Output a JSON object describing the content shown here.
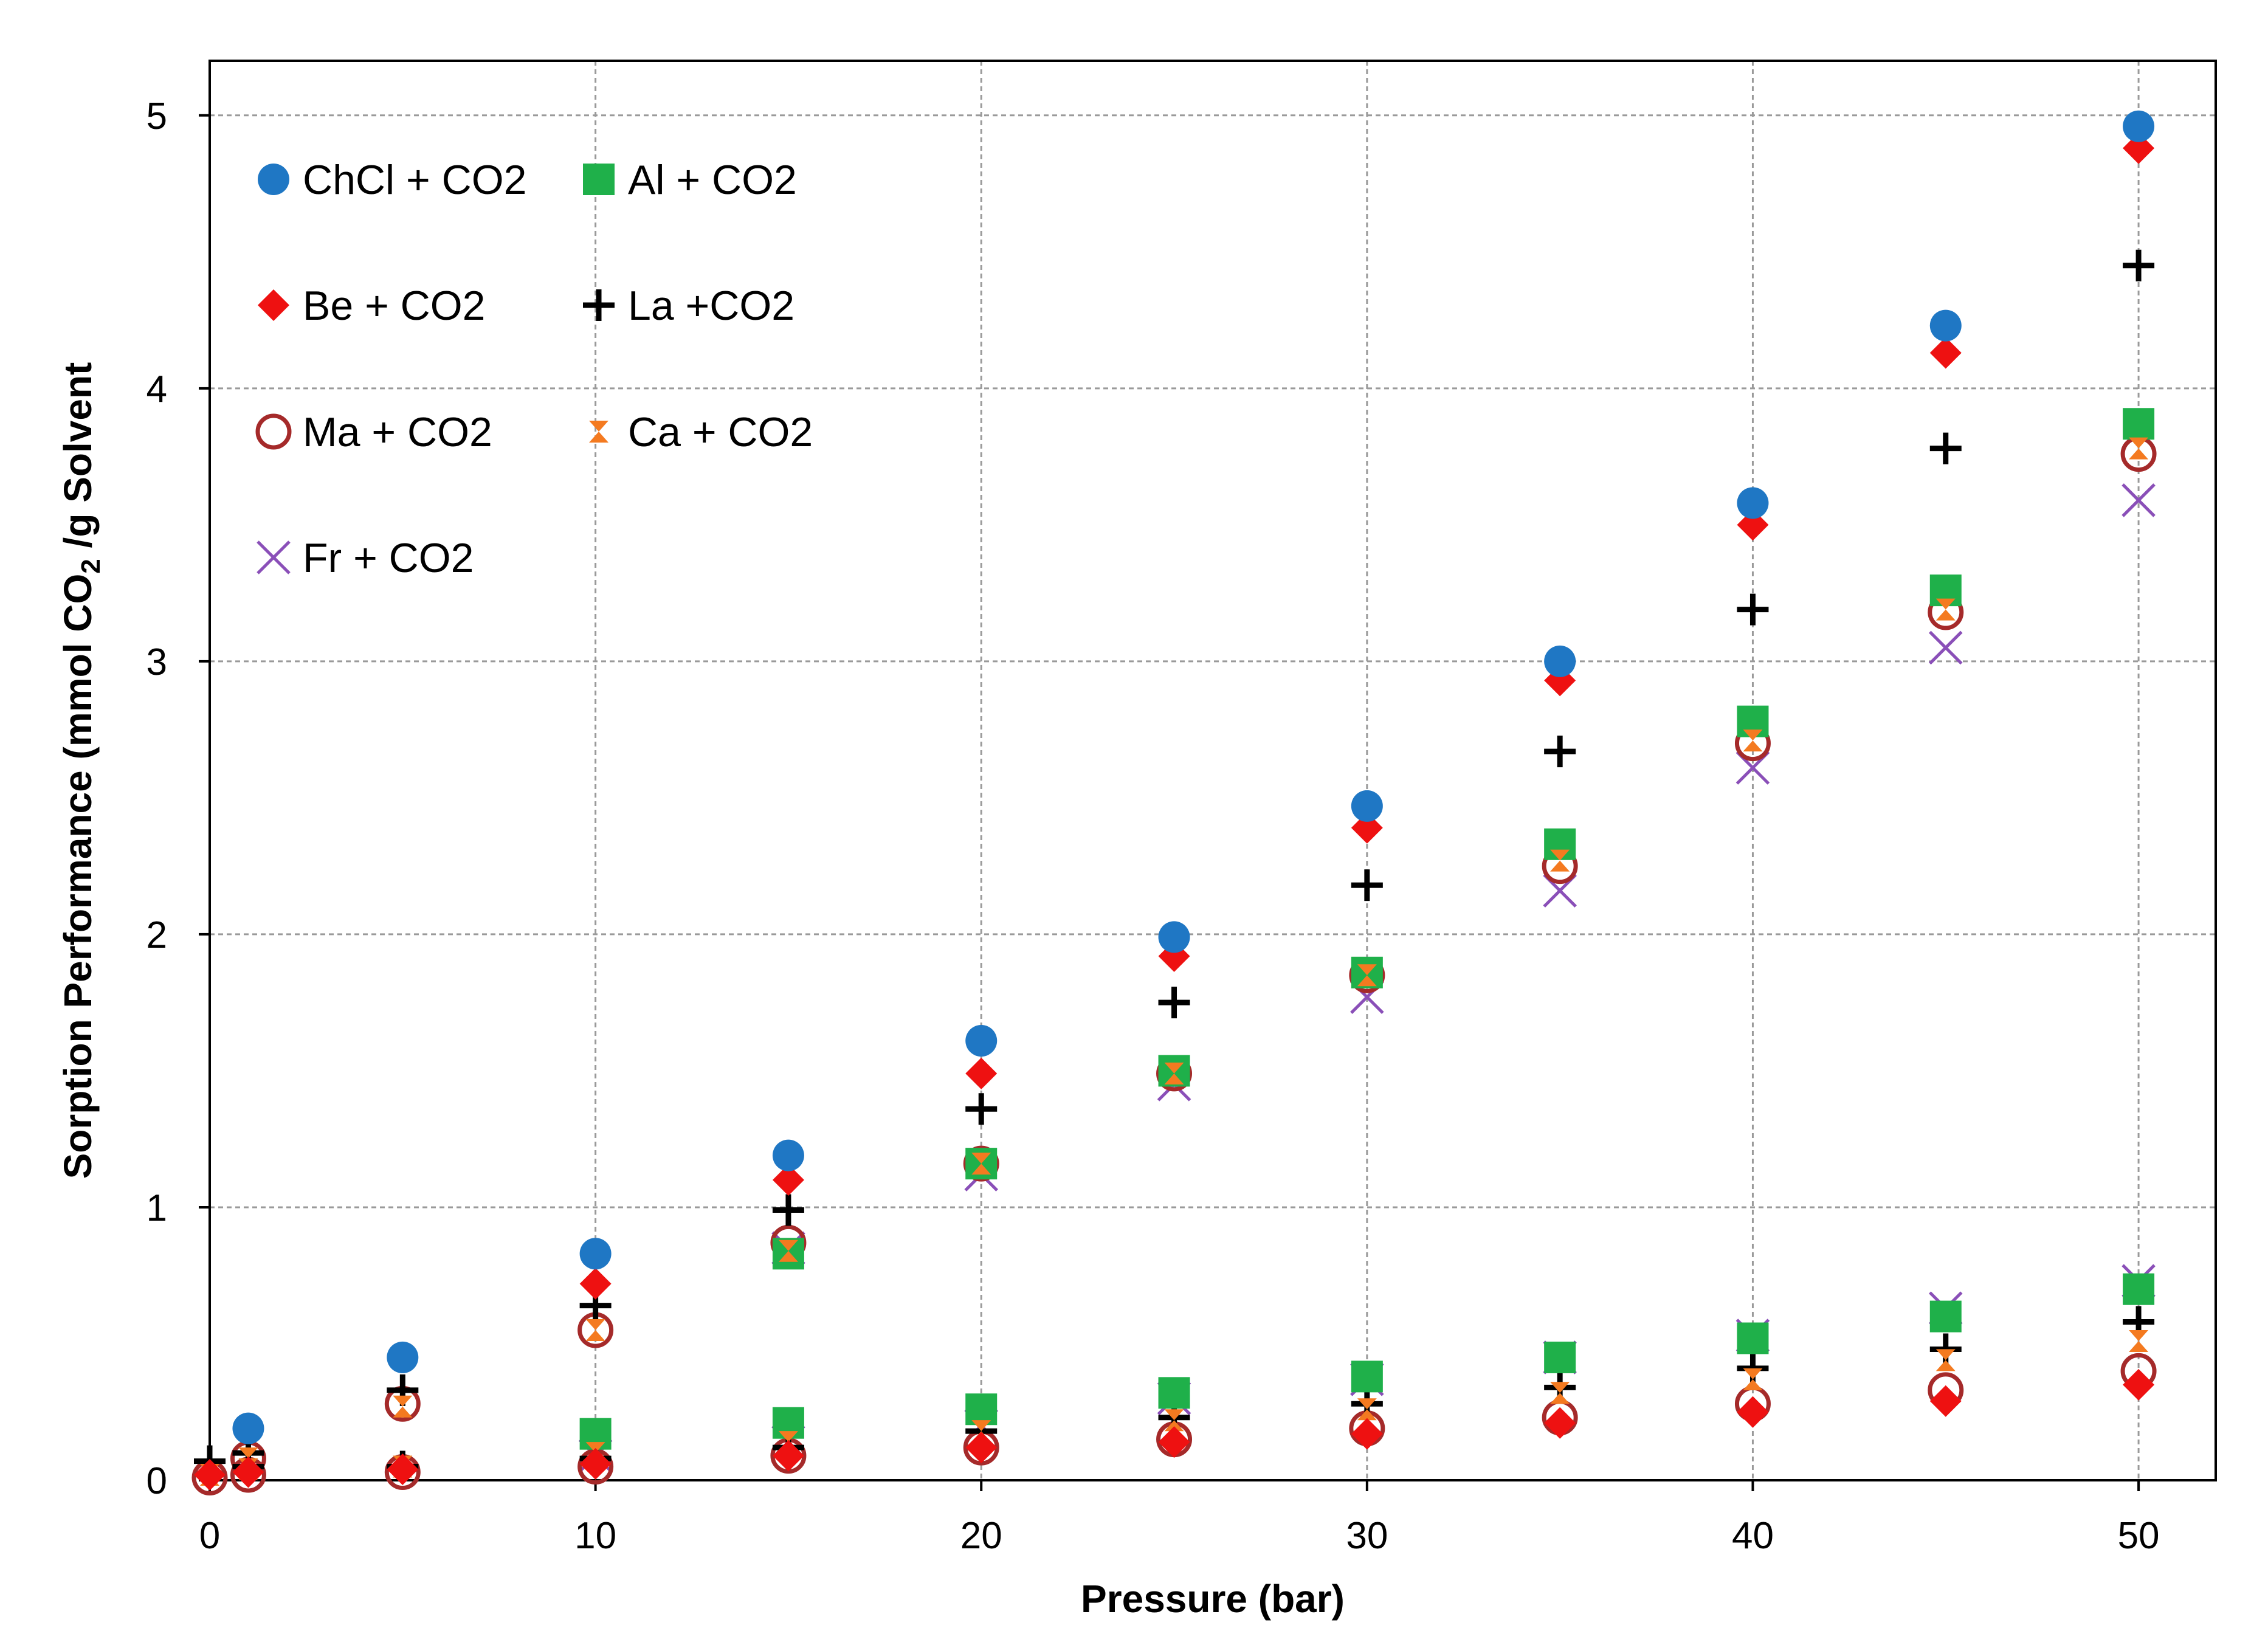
{
  "chart_data": {
    "type": "scatter",
    "title": "",
    "xlabel": "Pressure (bar)",
    "ylabel_main": "Sorption Performance (mmol CO",
    "ylabel_sub": "2",
    "ylabel_tail": " /g Solvent",
    "xlim": [
      0,
      52
    ],
    "ylim": [
      0,
      5.2
    ],
    "xticks": [
      0,
      10,
      20,
      30,
      40,
      50
    ],
    "yticks": [
      0,
      1,
      2,
      3,
      4,
      5
    ],
    "grid": true,
    "legend_position": "top-left",
    "series": [
      {
        "name": "ChCl + CO2",
        "marker": "circle",
        "color": "#1f77c4",
        "x": [
          1,
          5,
          10,
          15,
          20,
          25,
          30,
          35,
          40,
          45,
          50
        ],
        "y": [
          0.19,
          0.45,
          0.83,
          1.19,
          1.61,
          1.99,
          2.47,
          3.0,
          3.58,
          4.23,
          4.96
        ],
        "x2": [],
        "y2": []
      },
      {
        "name": "Al + CO2",
        "marker": "square",
        "color": "#1fb04a",
        "x": [
          15,
          20,
          25,
          30,
          35,
          40,
          45,
          50
        ],
        "y": [
          0.83,
          1.16,
          1.5,
          1.86,
          2.33,
          2.78,
          3.26,
          3.87
        ],
        "x2": [
          10,
          15,
          20,
          25,
          30,
          35,
          40,
          45,
          50
        ],
        "y2": [
          0.17,
          0.21,
          0.26,
          0.32,
          0.38,
          0.45,
          0.52,
          0.6,
          0.7
        ]
      },
      {
        "name": "Be + CO2",
        "marker": "diamond",
        "color": "#ee1111",
        "x": [
          10,
          15,
          20,
          25,
          30,
          35,
          40,
          45,
          50
        ],
        "y": [
          0.72,
          1.1,
          1.49,
          1.92,
          2.39,
          2.93,
          3.5,
          4.13,
          4.88
        ],
        "x2": [
          0,
          1,
          5,
          10,
          15,
          20,
          25,
          30,
          35,
          40,
          45,
          50
        ],
        "y2": [
          0.02,
          0.03,
          0.04,
          0.06,
          0.09,
          0.12,
          0.14,
          0.17,
          0.21,
          0.25,
          0.29,
          0.35
        ]
      },
      {
        "name": "La +CO2",
        "marker": "plus",
        "color": "#000000",
        "x": [
          1,
          5,
          10,
          15,
          20,
          25,
          30,
          35,
          40,
          45,
          50
        ],
        "y": [
          0.1,
          0.33,
          0.64,
          0.99,
          1.36,
          1.75,
          2.18,
          2.67,
          3.19,
          3.78,
          4.45
        ],
        "x2": [
          0,
          1,
          5,
          10,
          15,
          20,
          25,
          30,
          35,
          40,
          45,
          50
        ],
        "y2": [
          0.07,
          0.05,
          0.05,
          0.08,
          0.12,
          0.18,
          0.23,
          0.28,
          0.34,
          0.41,
          0.48,
          0.58
        ]
      },
      {
        "name": "Ma + CO2",
        "marker": "circle-open",
        "color": "#a52a2a",
        "x": [
          1,
          5,
          10,
          15,
          20,
          25,
          30,
          35,
          40,
          45,
          50
        ],
        "y": [
          0.08,
          0.28,
          0.55,
          0.87,
          1.16,
          1.49,
          1.85,
          2.25,
          2.7,
          3.18,
          3.76
        ],
        "x2": [
          0,
          1,
          5,
          10,
          15,
          20,
          25,
          30,
          35,
          40,
          45,
          50
        ],
        "y2": [
          0.01,
          0.02,
          0.03,
          0.05,
          0.09,
          0.12,
          0.15,
          0.19,
          0.23,
          0.28,
          0.33,
          0.4
        ]
      },
      {
        "name": "Ca + CO2",
        "marker": "hourglass",
        "color": "#f47a20",
        "x": [
          0,
          1,
          5,
          10,
          15,
          20,
          25,
          30,
          35,
          40,
          45,
          50
        ],
        "y": [
          0.02,
          0.08,
          0.27,
          0.55,
          0.84,
          1.16,
          1.49,
          1.85,
          2.27,
          2.71,
          3.19,
          3.78
        ],
        "x2": [
          1,
          5,
          10,
          15,
          20,
          25,
          30,
          35,
          40,
          45,
          50
        ],
        "y2": [
          0.04,
          0.05,
          0.1,
          0.14,
          0.18,
          0.22,
          0.26,
          0.32,
          0.37,
          0.44,
          0.51
        ]
      },
      {
        "name": "Fr + CO2",
        "marker": "cross",
        "color": "#8a4fb8",
        "x": [
          15,
          20,
          25,
          30,
          35,
          40,
          45,
          50
        ],
        "y": [
          0.85,
          1.12,
          1.45,
          1.77,
          2.16,
          2.61,
          3.05,
          3.59
        ],
        "x2": [
          10,
          15,
          20,
          25,
          30,
          35,
          40,
          45,
          50
        ],
        "y2": [
          0.09,
          0.14,
          0.2,
          0.3,
          0.37,
          0.45,
          0.53,
          0.63,
          0.73
        ]
      }
    ]
  }
}
